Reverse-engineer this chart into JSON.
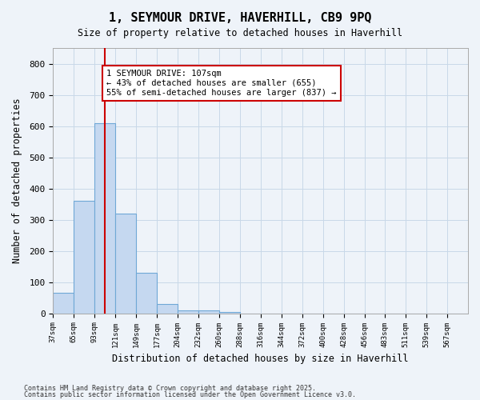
{
  "title": "1, SEYMOUR DRIVE, HAVERHILL, CB9 9PQ",
  "subtitle": "Size of property relative to detached houses in Haverhill",
  "xlabel": "Distribution of detached houses by size in Haverhill",
  "ylabel": "Number of detached properties",
  "footnote1": "Contains HM Land Registry data © Crown copyright and database right 2025.",
  "footnote2": "Contains public sector information licensed under the Open Government Licence v3.0.",
  "bin_edges": [
    37,
    65,
    93,
    121,
    149,
    177,
    204,
    232,
    260,
    288,
    316,
    344,
    372,
    400,
    428,
    456,
    483,
    511,
    539,
    567,
    595
  ],
  "bar_heights": [
    65,
    360,
    610,
    320,
    130,
    30,
    10,
    10,
    5,
    0,
    0,
    0,
    0,
    0,
    0,
    0,
    0,
    0,
    0,
    0
  ],
  "bar_color": "#c5d8f0",
  "bar_edge_color": "#6fa8d6",
  "property_size": 107,
  "annotation_text": "1 SEYMOUR DRIVE: 107sqm\n← 43% of detached houses are smaller (655)\n55% of semi-detached houses are larger (837) →",
  "annotation_box_color": "#ffffff",
  "annotation_border_color": "#cc0000",
  "vline_color": "#cc0000",
  "grid_color": "#c8d8e8",
  "bg_color": "#eef3f9",
  "ylim": [
    0,
    850
  ],
  "yticks": [
    0,
    100,
    200,
    300,
    400,
    500,
    600,
    700,
    800
  ]
}
